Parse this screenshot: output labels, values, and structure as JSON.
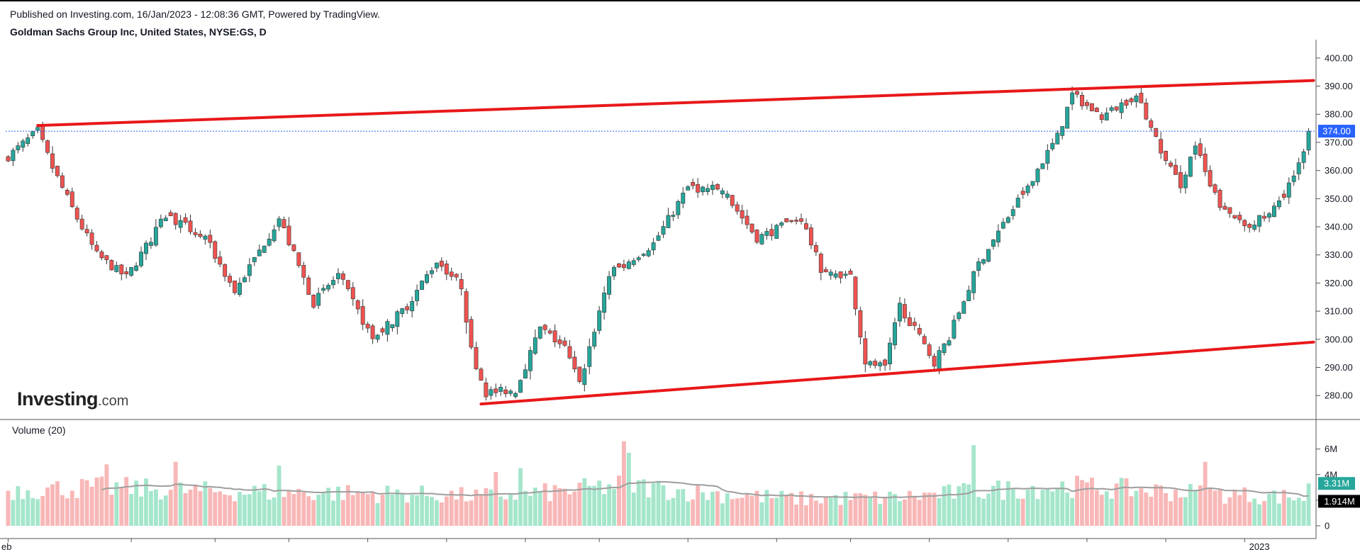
{
  "header": {
    "published_line": "Published on Investing.com, 16/Jan/2023 - 12:08:36 GMT, Powered by TradingView.",
    "symbol_line": "Goldman Sachs Group Inc, United States, NYSE:GS, D"
  },
  "logo": {
    "main": "Investing",
    "domain": ".com"
  },
  "volume_panel": {
    "title": "Volume (20)"
  },
  "colors": {
    "up": "#26a69a",
    "down": "#ef5350",
    "up_vol": "#a5e6cb",
    "down_vol": "#f8b7b7",
    "trend": "#e8181a",
    "price_tag": "#2962ff",
    "vol_ma": "#9e9e9e"
  },
  "chart_data": [
    {
      "type": "candlestick",
      "title": "Goldman Sachs Group Inc, United States, NYSE:GS, D",
      "ylim": [
        272,
        405
      ],
      "y_ticks": [
        280,
        290,
        300,
        310,
        320,
        330,
        340,
        350,
        360,
        370,
        380,
        390,
        400
      ],
      "y_tick_labels": [
        "280.00",
        "290.00",
        "300.00",
        "310.00",
        "320.00",
        "330.00",
        "340.00",
        "350.00",
        "360.00",
        "370.00",
        "380.00",
        "390.00",
        "400.00"
      ],
      "x_labels": [
        "eb",
        "2023"
      ],
      "last_price": 374.0,
      "last_price_label": "374.00",
      "close_path": [
        {
          "bar": 0,
          "close": 365
        },
        {
          "bar": 6,
          "close": 374
        },
        {
          "bar": 9,
          "close": 361
        },
        {
          "bar": 14,
          "close": 343
        },
        {
          "bar": 18,
          "close": 330
        },
        {
          "bar": 24,
          "close": 322
        },
        {
          "bar": 32,
          "close": 344
        },
        {
          "bar": 40,
          "close": 336
        },
        {
          "bar": 46,
          "close": 317
        },
        {
          "bar": 55,
          "close": 343
        },
        {
          "bar": 62,
          "close": 313
        },
        {
          "bar": 67,
          "close": 323
        },
        {
          "bar": 74,
          "close": 300
        },
        {
          "bar": 81,
          "close": 312
        },
        {
          "bar": 87,
          "close": 328
        },
        {
          "bar": 92,
          "close": 319
        },
        {
          "bar": 94,
          "close": 296
        },
        {
          "bar": 97,
          "close": 281
        },
        {
          "bar": 103,
          "close": 282
        },
        {
          "bar": 108,
          "close": 304
        },
        {
          "bar": 113,
          "close": 297
        },
        {
          "bar": 116,
          "close": 284
        },
        {
          "bar": 122,
          "close": 323
        },
        {
          "bar": 131,
          "close": 334
        },
        {
          "bar": 138,
          "close": 354
        },
        {
          "bar": 145,
          "close": 353
        },
        {
          "bar": 152,
          "close": 336
        },
        {
          "bar": 161,
          "close": 343
        },
        {
          "bar": 165,
          "close": 325
        },
        {
          "bar": 171,
          "close": 322
        },
        {
          "bar": 174,
          "close": 292
        },
        {
          "bar": 178,
          "close": 290
        },
        {
          "bar": 181,
          "close": 312
        },
        {
          "bar": 188,
          "close": 292
        },
        {
          "bar": 191,
          "close": 301
        },
        {
          "bar": 197,
          "close": 327
        },
        {
          "bar": 206,
          "close": 352
        },
        {
          "bar": 213,
          "close": 372
        },
        {
          "bar": 216,
          "close": 387
        },
        {
          "bar": 222,
          "close": 379
        },
        {
          "bar": 229,
          "close": 387
        },
        {
          "bar": 235,
          "close": 363
        },
        {
          "bar": 238,
          "close": 355
        },
        {
          "bar": 241,
          "close": 369
        },
        {
          "bar": 244,
          "close": 354
        },
        {
          "bar": 247,
          "close": 345
        },
        {
          "bar": 252,
          "close": 341
        },
        {
          "bar": 256,
          "close": 344
        },
        {
          "bar": 259,
          "close": 352
        },
        {
          "bar": 262,
          "close": 362
        },
        {
          "bar": 264,
          "close": 374
        }
      ],
      "trendlines": [
        {
          "name": "upper",
          "from": {
            "bar": 6,
            "price": 376
          },
          "to": {
            "bar": 265,
            "price": 392
          }
        },
        {
          "name": "lower",
          "from": {
            "bar": 96,
            "price": 277
          },
          "to": {
            "bar": 265,
            "price": 299
          }
        }
      ]
    },
    {
      "type": "bar",
      "title": "Volume (20)",
      "ylim": [
        0,
        7.2
      ],
      "y_ticks": [
        0,
        2,
        4,
        6
      ],
      "y_tick_labels": [
        "0",
        "",
        "4M",
        "6M"
      ],
      "volume_path": [
        {
          "bar": 0,
          "v": 2.8
        },
        {
          "bar": 20,
          "v": 3.0
        },
        {
          "bar": 40,
          "v": 2.7
        },
        {
          "bar": 60,
          "v": 2.6
        },
        {
          "bar": 80,
          "v": 2.5
        },
        {
          "bar": 95,
          "v": 2.3
        },
        {
          "bar": 110,
          "v": 2.6
        },
        {
          "bar": 125,
          "v": 3.2
        },
        {
          "bar": 140,
          "v": 2.6
        },
        {
          "bar": 160,
          "v": 2.1
        },
        {
          "bar": 180,
          "v": 2.2
        },
        {
          "bar": 200,
          "v": 2.8
        },
        {
          "bar": 215,
          "v": 3.1
        },
        {
          "bar": 230,
          "v": 2.8
        },
        {
          "bar": 245,
          "v": 2.5
        },
        {
          "bar": 264,
          "v": 2.2
        }
      ],
      "spikes": [
        {
          "bar": 20,
          "v": 4.8
        },
        {
          "bar": 34,
          "v": 5.0
        },
        {
          "bar": 55,
          "v": 4.7
        },
        {
          "bar": 99,
          "v": 4.2
        },
        {
          "bar": 104,
          "v": 4.5
        },
        {
          "bar": 125,
          "v": 6.6
        },
        {
          "bar": 126,
          "v": 5.7
        },
        {
          "bar": 196,
          "v": 6.3
        },
        {
          "bar": 243,
          "v": 5.0
        },
        {
          "bar": 264,
          "v": 3.31
        }
      ],
      "volume_label": "3.31M",
      "volume_ma_label": "1.914M"
    }
  ]
}
